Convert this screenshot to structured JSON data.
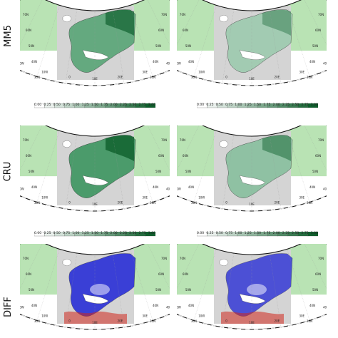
{
  "rows": [
    {
      "label": "MM5"
    },
    {
      "label": "CRU"
    },
    {
      "label": "DIFF"
    }
  ],
  "colorbars": [
    {
      "ticks": [
        "0.00",
        "0.25",
        "0.50",
        "0.75",
        "1.00",
        "1.25",
        "1.50",
        "1.75",
        "2.00",
        "2.25",
        "2.50",
        "2.75",
        "3.00"
      ]
    },
    {
      "ticks": [
        "0.00",
        "0.25",
        "0.50",
        "0.75",
        "1.00",
        "1.25",
        "1.50",
        "1.75",
        "2.00",
        "2.25",
        "2.50",
        "2.75",
        "3.00"
      ]
    },
    {
      "ticks": [
        "0.00",
        "0.25",
        "0.50",
        "0.75",
        "1.00",
        "1.25",
        "1.50",
        "1.75",
        "2.00",
        "2.25",
        "2.50",
        "2.75",
        "3.00"
      ]
    },
    {
      "ticks": [
        "0.00",
        "0.25",
        "0.50",
        "0.75",
        "1.00",
        "1.25",
        "1.50",
        "1.75",
        "2.00",
        "2.25",
        "2.50",
        "2.75",
        "3.00"
      ]
    }
  ],
  "lon_labels": [
    "30W",
    "20W",
    "10W",
    "0",
    "10E",
    "20E",
    "30E",
    "40E",
    "50E"
  ],
  "lat_labels": [
    "30N",
    "40N",
    "50N",
    "60N",
    "70N"
  ],
  "colors": {
    "frame": "#111111",
    "land_gray": "#d4d4d4",
    "outer_green": "#b9e3b4",
    "cb_dark": "#0e5f2c",
    "diff_blue": "#2a2fd6",
    "diff_red": "#d0261c"
  }
}
